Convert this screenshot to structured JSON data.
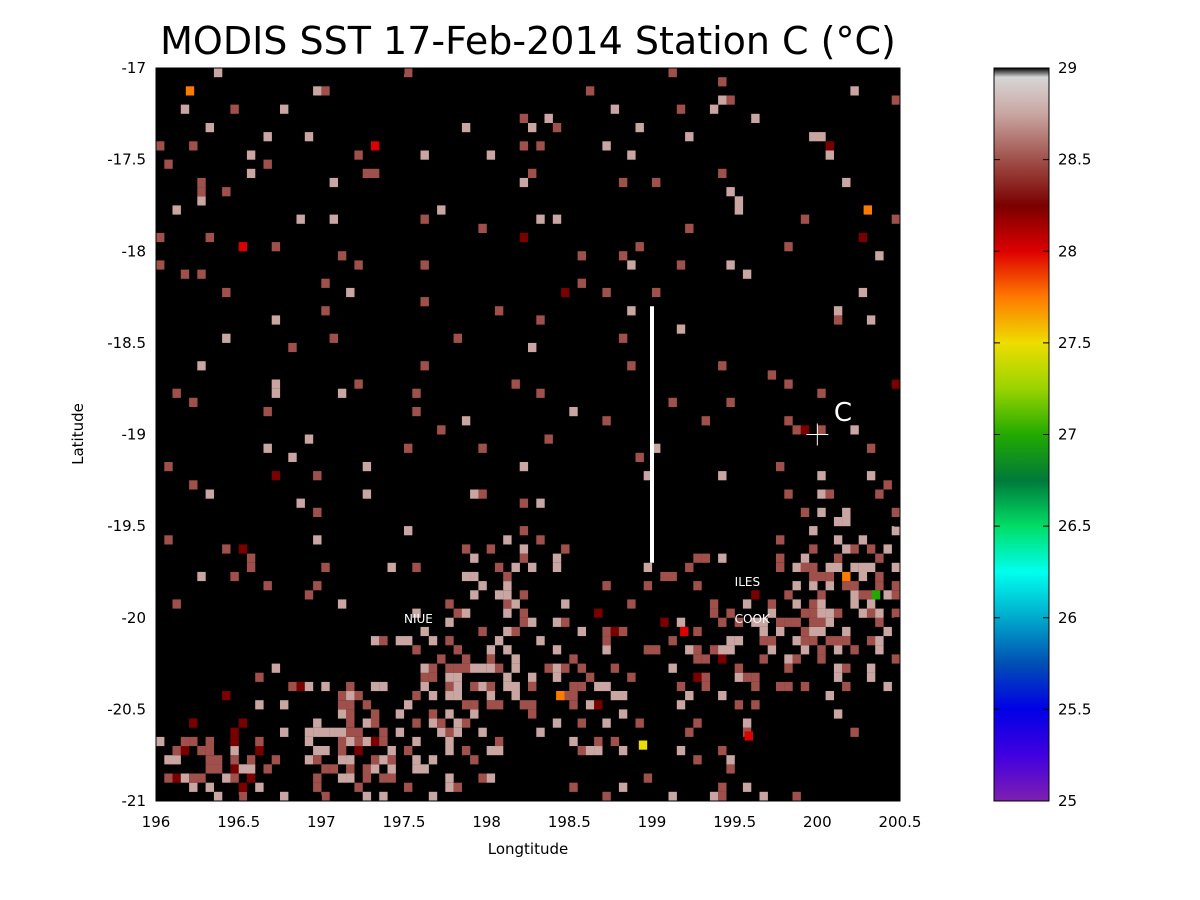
{
  "chart_data": {
    "type": "heatmap",
    "title": "MODIS SST 17-Feb-2014 Station C (°C)",
    "xlabel": "Longtitude",
    "ylabel": "Latitude",
    "xlim": [
      196,
      200.5
    ],
    "ylim": [
      -21,
      -17
    ],
    "x_ticks": [
      196,
      196.5,
      197,
      197.5,
      198,
      198.5,
      199,
      199.5,
      200,
      200.5
    ],
    "x_tick_labels": [
      "196",
      "196.5",
      "197",
      "197.5",
      "198",
      "198.5",
      "199",
      "199.5",
      "200",
      "200.5"
    ],
    "y_ticks": [
      -17,
      -17.5,
      -18,
      -18.5,
      -19,
      -19.5,
      -20,
      -20.5,
      -21
    ],
    "y_tick_labels": [
      "-17",
      "-17.5",
      "-18",
      "-18.5",
      "-19",
      "-19.5",
      "-20",
      "-20.5",
      "-21"
    ],
    "background_color": "#000000",
    "grid": false,
    "colorbar": {
      "min": 25,
      "max": 29,
      "ticks": [
        25,
        25.5,
        26,
        26.5,
        27,
        27.5,
        28,
        28.5,
        29
      ],
      "tick_labels": [
        "25",
        "25.5",
        "26",
        "26.5",
        "27",
        "27.5",
        "28",
        "28.5",
        "29"
      ],
      "placement": "right",
      "colormap": [
        [
          25.0,
          "#7f1fb0"
        ],
        [
          25.25,
          "#4000e0"
        ],
        [
          25.5,
          "#0000e6"
        ],
        [
          25.75,
          "#004fb3"
        ],
        [
          26.0,
          "#00aacc"
        ],
        [
          26.25,
          "#00ffee"
        ],
        [
          26.5,
          "#00dd66"
        ],
        [
          26.75,
          "#007a3a"
        ],
        [
          27.0,
          "#22aa00"
        ],
        [
          27.25,
          "#99d400"
        ],
        [
          27.5,
          "#eedd00"
        ],
        [
          27.75,
          "#ff7a00"
        ],
        [
          28.0,
          "#dd0000"
        ],
        [
          28.25,
          "#7a0000"
        ],
        [
          28.5,
          "#a0504a"
        ],
        [
          28.75,
          "#c9a6a2"
        ],
        [
          28.95,
          "#d6d6d6"
        ],
        [
          29.0,
          "#000000"
        ]
      ]
    },
    "annotations": [
      {
        "text": "NIUE",
        "lon": 197.5,
        "lat": -20.0
      },
      {
        "text": "ILES",
        "lon": 199.5,
        "lat": -19.8
      },
      {
        "text": "COOK",
        "lon": 199.5,
        "lat": -20.0
      },
      {
        "text": "C",
        "lon": 200.1,
        "lat": -18.9
      }
    ],
    "station_marker": {
      "lon": 200.0,
      "lat": -19.0,
      "symbol": "plus"
    },
    "section_line": {
      "lon": 199.0,
      "lat_start": -18.3,
      "lat_end": -19.7,
      "color": "#ffffff"
    },
    "pixel_clusters": [
      {
        "lon": 196.3,
        "lat": -20.85,
        "spread_lon": 0.35,
        "spread_lat": 0.2,
        "density": 0.75,
        "value": 28.65
      },
      {
        "lon": 197.2,
        "lat": -20.75,
        "spread_lon": 0.45,
        "spread_lat": 0.3,
        "density": 0.5,
        "value": 28.7
      },
      {
        "lon": 197.8,
        "lat": -20.4,
        "spread_lon": 0.45,
        "spread_lat": 0.45,
        "density": 0.5,
        "value": 28.75
      },
      {
        "lon": 198.6,
        "lat": -20.4,
        "spread_lon": 0.3,
        "spread_lat": 0.3,
        "density": 0.35,
        "value": 28.7
      },
      {
        "lon": 199.4,
        "lat": -20.2,
        "spread_lon": 0.45,
        "spread_lat": 0.45,
        "density": 0.3,
        "value": 28.7
      },
      {
        "lon": 200.1,
        "lat": -20.0,
        "spread_lon": 0.45,
        "spread_lat": 0.45,
        "density": 0.5,
        "value": 28.75
      },
      {
        "lon": 200.2,
        "lat": -19.6,
        "spread_lon": 0.3,
        "spread_lat": 0.25,
        "density": 0.4,
        "value": 28.8
      },
      {
        "lon": 198.1,
        "lat": -19.9,
        "spread_lon": 0.25,
        "spread_lat": 0.3,
        "density": 0.4,
        "value": 28.8
      }
    ],
    "hot_pixels": [
      {
        "lon": 196.18,
        "lat": -17.15,
        "value": 27.8
      },
      {
        "lon": 196.5,
        "lat": -18.0,
        "value": 28.0
      },
      {
        "lon": 197.3,
        "lat": -17.45,
        "value": 28.0
      },
      {
        "lon": 200.28,
        "lat": -17.8,
        "value": 27.8
      },
      {
        "lon": 200.15,
        "lat": -19.8,
        "value": 27.75
      },
      {
        "lon": 200.33,
        "lat": -19.9,
        "value": 27.0
      },
      {
        "lon": 198.92,
        "lat": -20.72,
        "value": 27.6
      },
      {
        "lon": 198.42,
        "lat": -20.45,
        "value": 27.9
      },
      {
        "lon": 199.17,
        "lat": -20.1,
        "value": 28.0
      },
      {
        "lon": 199.56,
        "lat": -20.67,
        "value": 28.0
      }
    ]
  }
}
